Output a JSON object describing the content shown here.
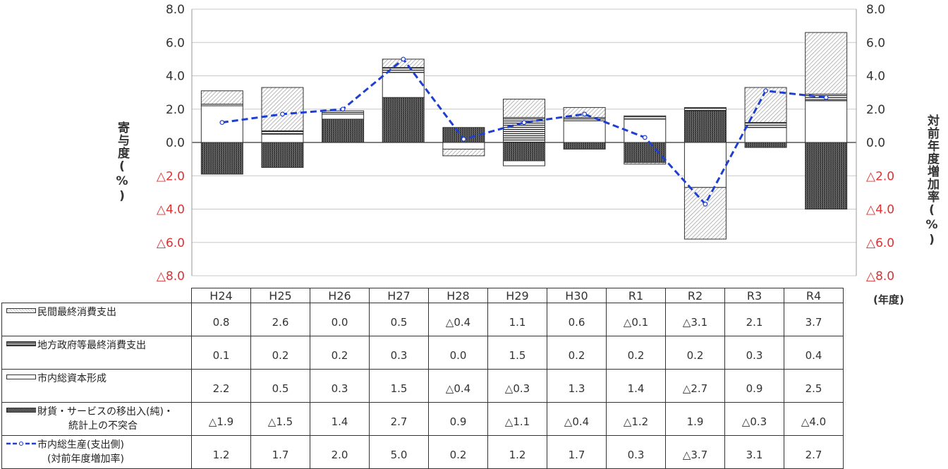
{
  "chart_data": {
    "type": "bar",
    "stacked": true,
    "categories": [
      "H24",
      "H25",
      "H26",
      "H27",
      "H28",
      "H29",
      "H30",
      "R1",
      "R2",
      "R3",
      "R4"
    ],
    "y_left_label": "寄与度(%)",
    "y_right_label": "対前年度増加率(%)",
    "x_unit": "(年度)",
    "ylim": [
      -8,
      8
    ],
    "yticks": [
      "8.0",
      "6.0",
      "4.0",
      "2.0",
      "0.0",
      "△2.0",
      "△4.0",
      "△6.0",
      "△8.0"
    ],
    "negative_tick_color": "#e03030",
    "series": [
      {
        "name": "民間最終消費支出",
        "pattern": "hatch",
        "values": [
          0.8,
          2.6,
          0.0,
          0.5,
          -0.4,
          1.1,
          0.6,
          -0.1,
          -3.1,
          2.1,
          3.7
        ],
        "labels": [
          "0.8",
          "2.6",
          "0.0",
          "0.5",
          "△0.4",
          "1.1",
          "0.6",
          "△0.1",
          "△3.1",
          "2.1",
          "3.7"
        ]
      },
      {
        "name": "地方政府等最終消費支出",
        "pattern": "horizontal",
        "values": [
          0.1,
          0.2,
          0.2,
          0.3,
          0.0,
          1.5,
          0.2,
          0.2,
          0.2,
          0.3,
          0.4
        ],
        "labels": [
          "0.1",
          "0.2",
          "0.2",
          "0.3",
          "0.0",
          "1.5",
          "0.2",
          "0.2",
          "0.2",
          "0.3",
          "0.4"
        ]
      },
      {
        "name": "市内総資本形成",
        "pattern": "white",
        "values": [
          2.2,
          0.5,
          0.3,
          1.5,
          -0.4,
          -0.3,
          1.3,
          1.4,
          -2.7,
          0.9,
          2.5
        ],
        "labels": [
          "2.2",
          "0.5",
          "0.3",
          "1.5",
          "△0.4",
          "△0.3",
          "1.3",
          "1.4",
          "△2.7",
          "0.9",
          "2.5"
        ]
      },
      {
        "name": "財貨・サービスの移出入(純)・",
        "name_line2": "統計上の不突合",
        "pattern": "dense",
        "values": [
          -1.9,
          -1.5,
          1.4,
          2.7,
          0.9,
          -1.1,
          -0.4,
          -1.2,
          1.9,
          -0.3,
          -4.0
        ],
        "labels": [
          "△1.9",
          "△1.5",
          "1.4",
          "2.7",
          "0.9",
          "△1.1",
          "△0.4",
          "△1.2",
          "1.9",
          "△0.3",
          "△4.0"
        ]
      },
      {
        "name": "市内総生産(支出側)",
        "name_line2": "(対前年度増加率)",
        "type": "line",
        "color": "#1f3fd0",
        "values": [
          1.2,
          1.7,
          2.0,
          5.0,
          0.2,
          1.2,
          1.7,
          0.3,
          -3.7,
          3.1,
          2.7
        ],
        "labels": [
          "1.2",
          "1.7",
          "2.0",
          "5.0",
          "0.2",
          "1.2",
          "1.7",
          "0.3",
          "△3.7",
          "3.1",
          "2.7"
        ]
      }
    ]
  }
}
